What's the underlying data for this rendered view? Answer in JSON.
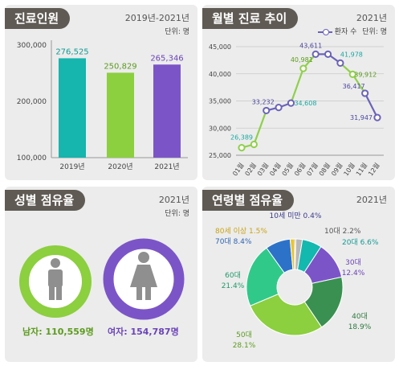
{
  "panels": {
    "bar": {
      "title": "진료인원",
      "year": "2019년-2021년",
      "unit": "단위: 명"
    },
    "line": {
      "title": "월별 진료 추이",
      "year": "2021년",
      "legend": "환자 수",
      "unit": "단위: 명"
    },
    "gender": {
      "title": "성별 점유율",
      "year": "2021년",
      "unit": "단위: 명",
      "male_label": "남자: 110,559명",
      "female_label": "여자: 154,787명"
    },
    "age": {
      "title": "연령별 점유율",
      "year": "2021년"
    }
  },
  "colors": {
    "teal": "#16b5ad",
    "green": "#8ccf3f",
    "purple": "#7b55c7",
    "line": "#6a63b8",
    "line_light": "#8fd04a",
    "male": "#8ccf3f",
    "female": "#7b55c7",
    "text_teal": "#1aa7a0",
    "text_green": "#5c9b1e"
  },
  "chart_data": [
    {
      "type": "bar",
      "categories": [
        "2019년",
        "2020년",
        "2021년"
      ],
      "values": [
        276525,
        250829,
        265346
      ],
      "value_labels": [
        "276,525",
        "250,829",
        "265,346"
      ],
      "colors": [
        "#16b5ad",
        "#8ccf3f",
        "#7b55c7"
      ],
      "ylim": [
        100000,
        300000
      ],
      "yticks": [
        100000,
        200000,
        300000
      ],
      "ytick_labels": [
        "100,000",
        "200,000",
        "300,000"
      ]
    },
    {
      "type": "line",
      "categories": [
        "01월",
        "02월",
        "03월",
        "04월",
        "05월",
        "06월",
        "07월",
        "08월",
        "09월",
        "10월",
        "11월",
        "12월"
      ],
      "values": [
        26389,
        27000,
        33232,
        33800,
        34608,
        40981,
        43611,
        43611,
        41978,
        39912,
        36417,
        31947
      ],
      "point_labels": [
        "26,389",
        "",
        "33,232",
        "",
        "34,608",
        "40,981",
        "43,611",
        "",
        "41,978",
        "39,912",
        "36,417",
        "31,947"
      ],
      "ylim": [
        25000,
        45000
      ],
      "yticks": [
        25000,
        30000,
        35000,
        40000,
        45000
      ],
      "ytick_labels": [
        "25,000",
        "30,000",
        "35,000",
        "40,000",
        "45,000"
      ]
    },
    {
      "type": "pie",
      "labels": [
        "10세 미만",
        "10대",
        "20대",
        "30대",
        "40대",
        "50대",
        "60대",
        "70대",
        "80세 이상"
      ],
      "values": [
        0.4,
        2.2,
        6.6,
        12.4,
        18.9,
        28.1,
        21.4,
        8.4,
        1.5
      ],
      "value_labels": [
        "0.4%",
        "2.2%",
        "6.6%",
        "12.4%",
        "18.9%",
        "28.1%",
        "21.4%",
        "8.4%",
        "1.5%"
      ],
      "colors": [
        "#8a8a8a",
        "#b8b8b8",
        "#13b8ae",
        "#7b55c7",
        "#3a9050",
        "#8ccf3f",
        "#30c98a",
        "#2d72c9",
        "#e8c431"
      ]
    }
  ]
}
